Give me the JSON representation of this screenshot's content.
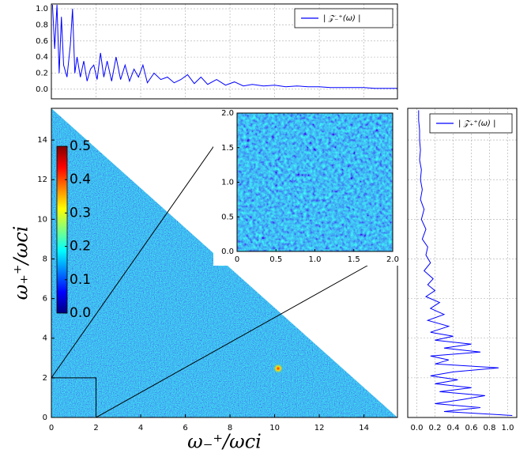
{
  "chart_data": [
    {
      "type": "line",
      "legend": "upper right",
      "grid": true,
      "x": [
        0.05,
        0.15,
        0.25,
        0.35,
        0.45,
        0.55,
        0.7,
        0.85,
        0.95,
        1.05,
        1.15,
        1.3,
        1.45,
        1.6,
        1.75,
        1.9,
        2.05,
        2.2,
        2.35,
        2.5,
        2.7,
        2.9,
        3.1,
        3.3,
        3.5,
        3.7,
        3.9,
        4.1,
        4.3,
        4.6,
        4.9,
        5.2,
        5.5,
        5.8,
        6.1,
        6.4,
        6.7,
        7.0,
        7.4,
        7.8,
        8.2,
        8.6,
        9.0,
        9.5,
        10,
        10.5,
        11,
        11.5,
        12,
        12.5,
        13,
        13.5,
        14,
        14.5,
        15,
        15.5
      ],
      "series": [
        {
          "name": "| 𝒵₋⁺(ω) |",
          "color": "#0000ff",
          "values": [
            1.05,
            0.5,
            1.05,
            0.2,
            0.9,
            0.3,
            0.15,
            0.55,
            1.0,
            0.2,
            0.4,
            0.15,
            0.35,
            0.1,
            0.25,
            0.3,
            0.12,
            0.45,
            0.15,
            0.35,
            0.1,
            0.4,
            0.12,
            0.3,
            0.1,
            0.25,
            0.15,
            0.3,
            0.08,
            0.2,
            0.12,
            0.15,
            0.08,
            0.12,
            0.18,
            0.07,
            0.15,
            0.06,
            0.12,
            0.05,
            0.09,
            0.04,
            0.06,
            0.04,
            0.05,
            0.03,
            0.04,
            0.03,
            0.03,
            0.02,
            0.02,
            0.02,
            0.02,
            0.01,
            0.01,
            0.01
          ]
        }
      ],
      "xlim": [
        0,
        15.5
      ],
      "xticks": [
        0,
        2,
        4,
        6,
        8,
        10,
        12,
        14
      ],
      "ylim": [
        -0.12,
        1.06
      ],
      "yticks": [
        {
          "value": 0,
          "label": "0.0"
        },
        0.2,
        0.4,
        0.6,
        0.8,
        {
          "value": 1,
          "label": "1.0"
        }
      ]
    },
    {
      "type": "heatmap",
      "xlabel": "ω₋⁺/ωci",
      "ylabel": "ω₊⁺/ωci",
      "xlim": [
        0,
        15.5
      ],
      "xticks": [
        0,
        2,
        4,
        6,
        8,
        10,
        12,
        14
      ],
      "ylim": [
        0,
        15.6
      ],
      "yticks": [
        0,
        2,
        4,
        6,
        8,
        10,
        12,
        14
      ],
      "colorbar": {
        "lim": [
          0,
          0.5
        ],
        "ticks": [
          {
            "value": 0,
            "label": "0.0"
          },
          0.1,
          0.2,
          0.3,
          0.4,
          0.5
        ]
      },
      "inset": {
        "xlim": [
          0,
          2
        ],
        "ylim": [
          0,
          2
        ],
        "xticks": [
          0,
          0.5,
          {
            "value": 1,
            "label": "1.0"
          },
          1.5,
          {
            "value": 2,
            "label": "2.0"
          }
        ],
        "yticks": [
          {
            "value": 0,
            "label": "0.0"
          },
          0.5,
          {
            "value": 1,
            "label": "1.0"
          },
          1.5,
          {
            "value": 2,
            "label": "2.0"
          }
        ]
      }
    },
    {
      "type": "line-vertical",
      "legend": "upper right",
      "grid": true,
      "y": [
        0.1,
        0.3,
        0.5,
        0.7,
        0.9,
        1.1,
        1.3,
        1.5,
        1.7,
        1.9,
        2.1,
        2.3,
        2.5,
        2.7,
        2.9,
        3.1,
        3.3,
        3.5,
        3.7,
        3.9,
        4.1,
        4.3,
        4.6,
        4.9,
        5.2,
        5.5,
        5.8,
        6.1,
        6.4,
        6.7,
        7.0,
        7.4,
        7.8,
        8.2,
        8.6,
        9.0,
        9.5,
        10,
        10.5,
        11,
        11.5,
        12,
        12.5,
        13,
        13.5,
        14,
        14.5,
        15,
        15.5
      ],
      "series": [
        {
          "name": "| 𝒵₊⁺(ω) |",
          "color": "#0000ff",
          "values": [
            1.05,
            0.3,
            0.7,
            0.2,
            0.5,
            0.75,
            0.25,
            0.6,
            0.2,
            0.45,
            0.15,
            0.4,
            0.9,
            0.2,
            0.35,
            0.15,
            0.7,
            0.3,
            0.6,
            0.2,
            0.4,
            0.15,
            0.35,
            0.12,
            0.3,
            0.15,
            0.25,
            0.1,
            0.2,
            0.12,
            0.18,
            0.08,
            0.15,
            0.1,
            0.12,
            0.06,
            0.1,
            0.05,
            0.08,
            0.04,
            0.06,
            0.04,
            0.05,
            0.03,
            0.04,
            0.03,
            0.03,
            0.02,
            0.02
          ]
        }
      ],
      "xlim": [
        -0.1,
        1.1
      ],
      "xticks": [
        {
          "value": 0,
          "label": "0.0"
        },
        0.2,
        0.4,
        0.6,
        0.8,
        {
          "value": 1,
          "label": "1.0"
        }
      ],
      "ylim": [
        0,
        15.6
      ],
      "yticks": [
        0,
        2,
        4,
        6,
        8,
        10,
        12,
        14
      ]
    }
  ]
}
